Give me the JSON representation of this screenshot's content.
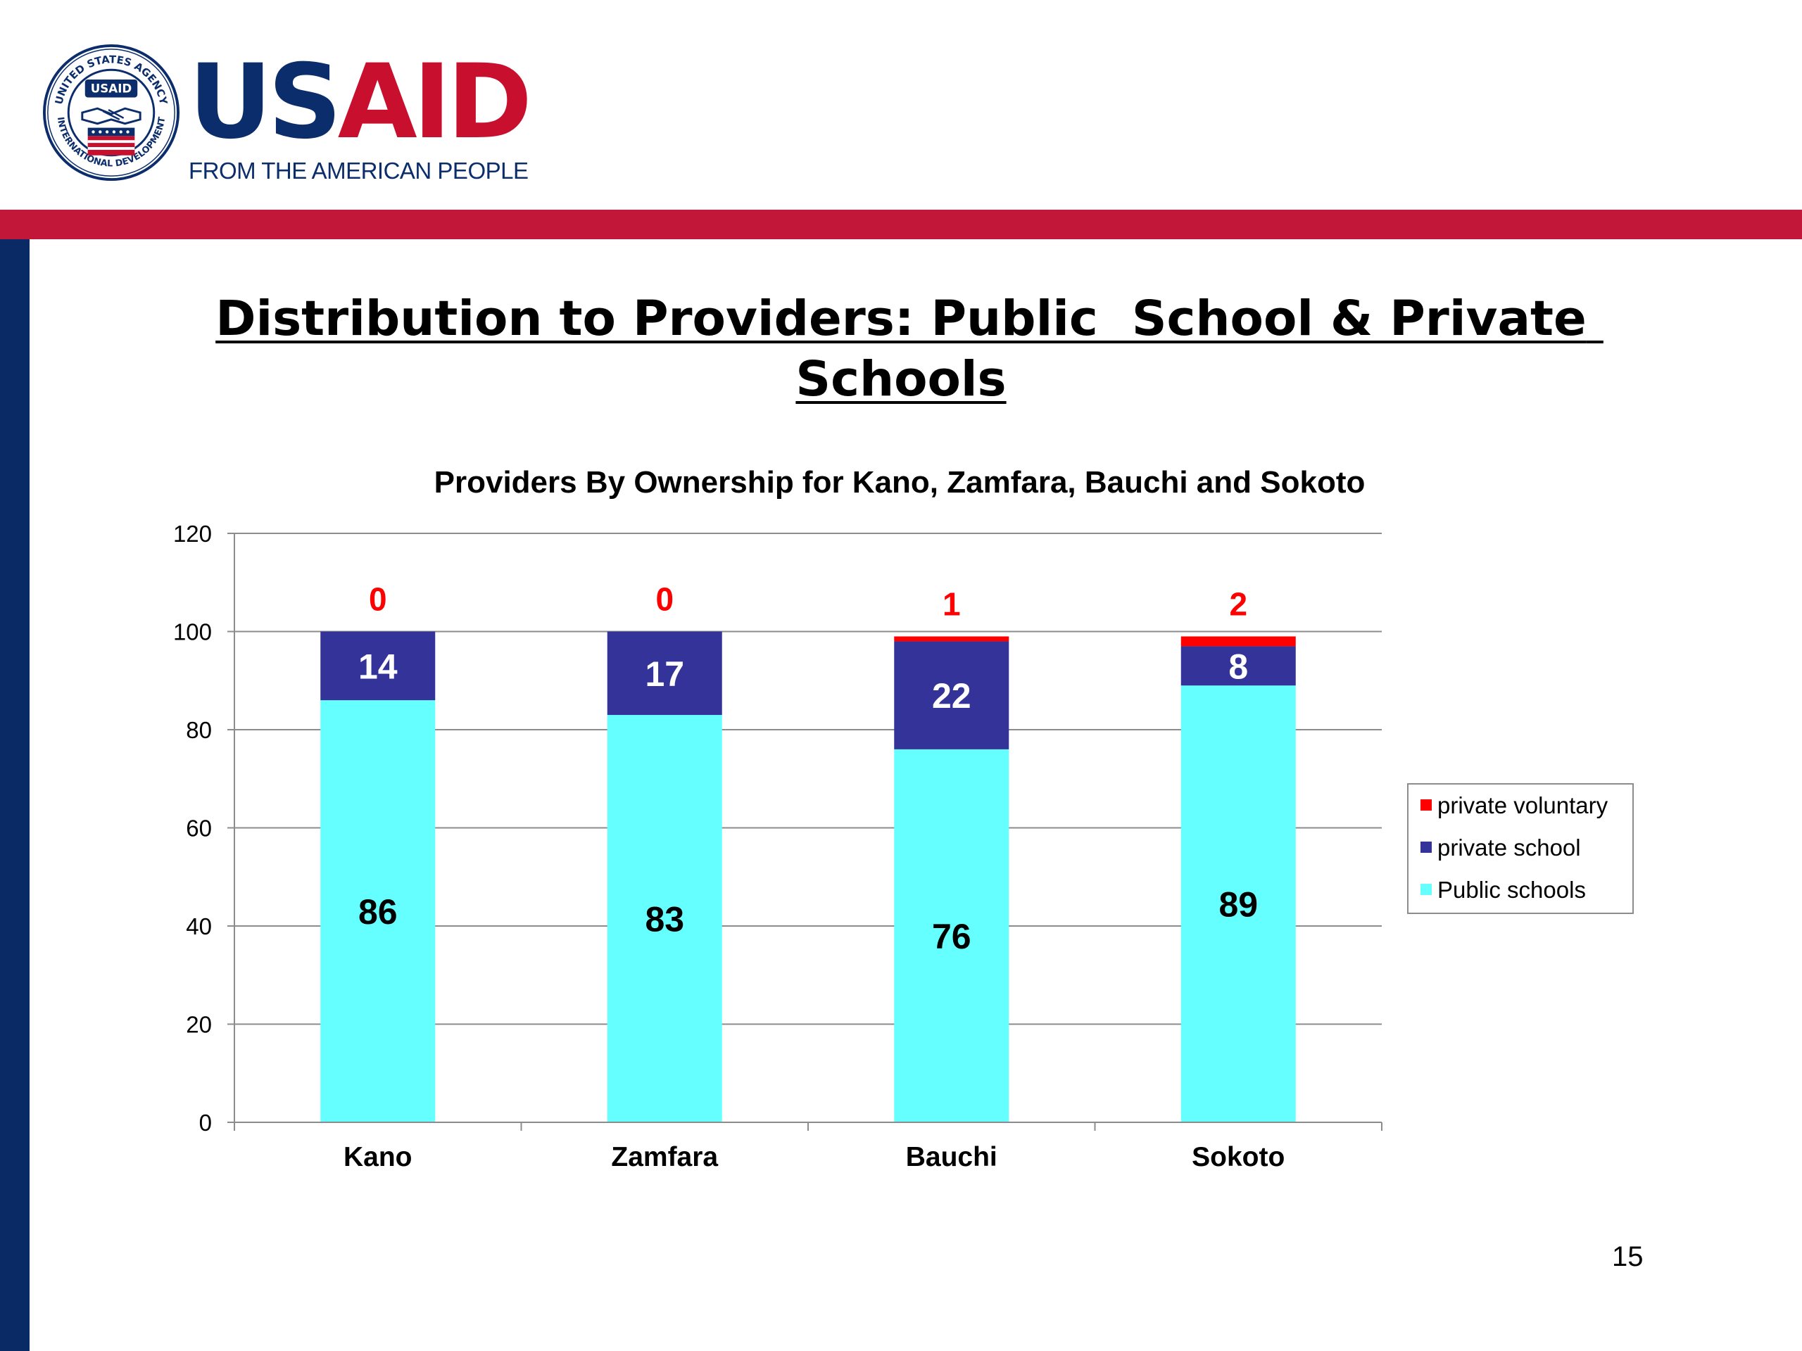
{
  "brand": {
    "seal_top_text": "UNITED STATES AGENCY",
    "seal_bottom_text": "INTERNATIONAL DEVELOPMENT",
    "seal_badge_text": "USAID",
    "logo_word_a": "US",
    "logo_word_b": "AID",
    "tagline": "FROM THE AMERICAN PEOPLE",
    "colors": {
      "navy": "#0b2d6b",
      "red": "#c8102e",
      "band_red": "#c3173a",
      "band_blue": "#0a2a66"
    }
  },
  "slide": {
    "title": "Distribution to Providers: Public  School & Private Schools",
    "page_number": "15"
  },
  "chart_data": {
    "type": "bar",
    "stacked": true,
    "title": "Providers By Ownership for Kano, Zamfara, Bauchi and Sokoto",
    "xlabel": "",
    "ylabel": "",
    "categories": [
      "Kano",
      "Zamfara",
      "Bauchi",
      "Sokoto"
    ],
    "ylim": [
      0,
      120
    ],
    "yticks": [
      0,
      20,
      40,
      60,
      80,
      100,
      120
    ],
    "grid": true,
    "legend_position": "right",
    "series": [
      {
        "name": "Public schools",
        "color": "#66ffff",
        "label_color": "#000000",
        "values": [
          86,
          83,
          76,
          89
        ]
      },
      {
        "name": "private school",
        "color": "#333399",
        "label_color": "#ffffff",
        "values": [
          14,
          17,
          22,
          8
        ]
      },
      {
        "name": "private voluntary",
        "color": "#ff0000",
        "label_color": "#ff0000",
        "values": [
          0,
          0,
          1,
          2
        ]
      }
    ]
  }
}
